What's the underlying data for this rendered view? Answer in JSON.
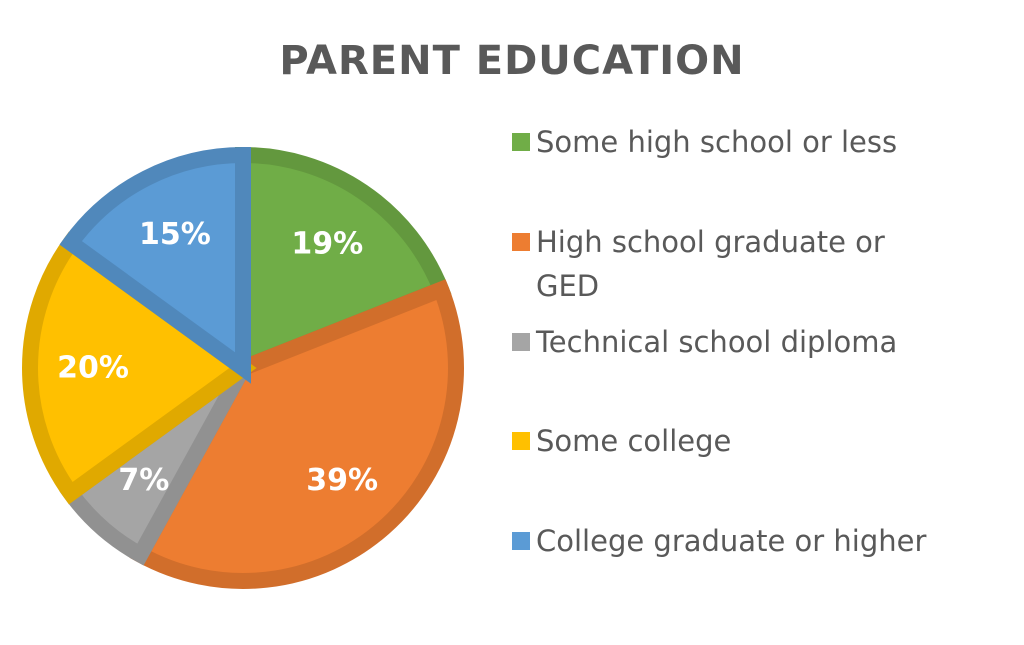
{
  "chart_data": {
    "type": "pie",
    "title": "PARENT EDUCATION",
    "slices": [
      {
        "label": "Some high school or less",
        "value": 19,
        "display": "19%",
        "color": "#70AD47"
      },
      {
        "label": "High school graduate or GED",
        "value": 39,
        "display": "39%",
        "color": "#ED7D31"
      },
      {
        "label": "Technical school diploma",
        "value": 7,
        "display": "7%",
        "color": "#A5A5A5"
      },
      {
        "label": "Some college",
        "value": 20,
        "display": "20%",
        "color": "#FFC000"
      },
      {
        "label": "College graduate or higher",
        "value": 15,
        "display": "15%",
        "color": "#5B9BD5"
      }
    ],
    "legend_position": "right"
  }
}
